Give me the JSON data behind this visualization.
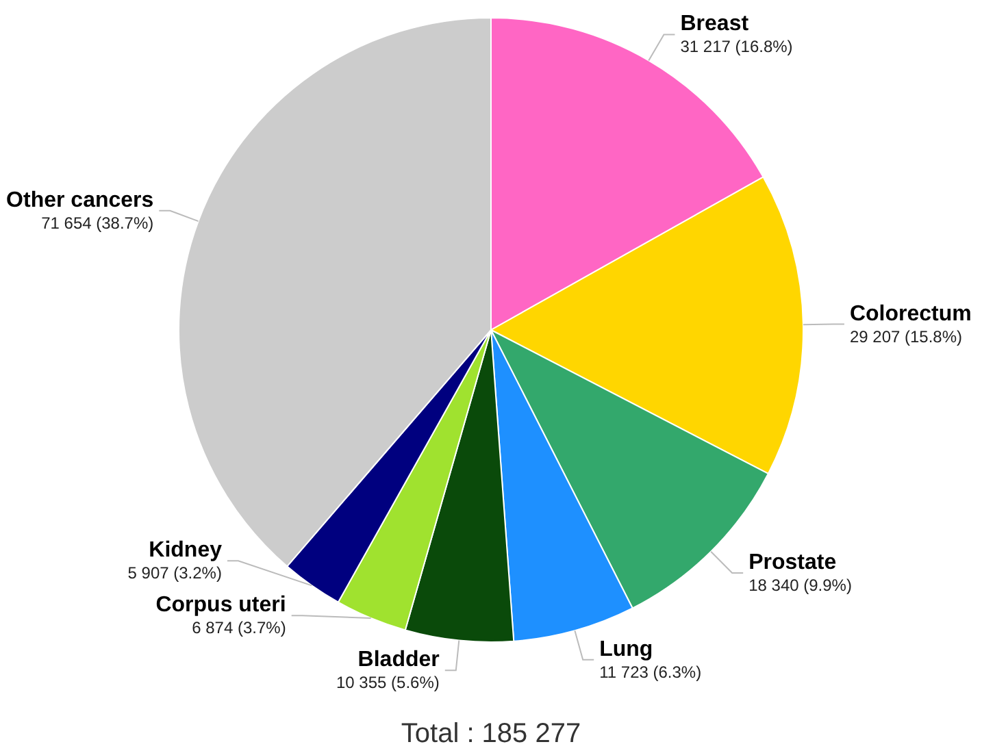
{
  "chart_data": {
    "type": "pie",
    "categories": [
      "Breast",
      "Colorectum",
      "Prostate",
      "Lung",
      "Bladder",
      "Corpus uteri",
      "Kidney",
      "Other cancers"
    ],
    "values": [
      31217,
      29207,
      18340,
      11723,
      10355,
      6874,
      5907,
      71654
    ],
    "value_labels": [
      "31 217 (16.8%)",
      "29 207 (15.8%)",
      "18 340 (9.9%)",
      "11 723 (6.3%)",
      "10 355 (5.6%)",
      "6 874 (3.7%)",
      "5 907 (3.2%)",
      "71 654 (38.7%)"
    ],
    "colors": [
      "#ff66c4",
      "#ffd600",
      "#33a86c",
      "#1e90ff",
      "#0a4a0a",
      "#a0e22f",
      "#00007f",
      "#cccccc"
    ],
    "legend": false,
    "annotations": [
      "Total : 185 277"
    ]
  }
}
